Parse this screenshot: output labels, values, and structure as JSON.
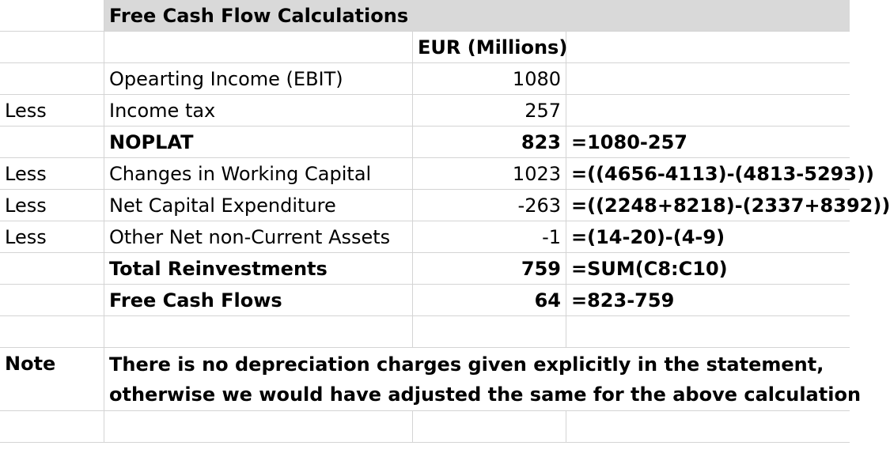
{
  "title": "Free Cash Flow Calculations",
  "currency_header": "EUR (Millions)",
  "rows": [
    {
      "prefix": "",
      "label": "Opearting Income (EBIT)",
      "value": "1080",
      "formula": "",
      "bold": false
    },
    {
      "prefix": "Less",
      "label": "Income tax",
      "value": "257",
      "formula": "",
      "bold": false
    },
    {
      "prefix": "",
      "label": "NOPLAT",
      "value": "823",
      "formula": "=1080-257",
      "bold": true
    },
    {
      "prefix": "Less",
      "label": "Changes in Working Capital",
      "value": "1023",
      "formula": "=((4656-4113)-(4813-5293))",
      "bold": false
    },
    {
      "prefix": "Less",
      "label": "Net Capital Expenditure",
      "value": "-263",
      "formula": "=((2248+8218)-(2337+8392))",
      "bold": false
    },
    {
      "prefix": "Less",
      "label": "Other Net non-Current Assets",
      "value": "-1",
      "formula": "=(14-20)-(4-9)",
      "bold": false
    },
    {
      "prefix": "",
      "label": "Total Reinvestments",
      "value": "759",
      "formula": "=SUM(C8:C10)",
      "bold": true
    },
    {
      "prefix": "",
      "label": "Free Cash Flows",
      "value": "64",
      "formula": "=823-759",
      "bold": true
    }
  ],
  "note": {
    "label": "Note",
    "line1": "There is no depreciation charges given explicitly in the statement,",
    "line2": "otherwise we would have adjusted the same for the above calculation"
  }
}
